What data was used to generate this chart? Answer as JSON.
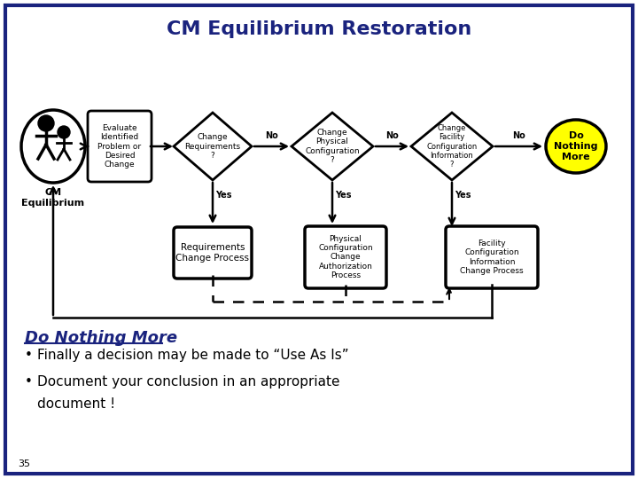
{
  "title": "CM Equilibrium Restoration",
  "title_color": "#1a237e",
  "title_fontsize": 16,
  "bg_color": "#ffffff",
  "border_color": "#1a237e",
  "slide_number": "35",
  "bottom_title": "Do Nothing More",
  "bullet1": "Finally a decision may be made to “Use As Is”",
  "bullet2": "Document your conclusion in an appropriate\n        document !",
  "shape_fill": "#ffffff",
  "shape_border": "#000000",
  "do_nothing_fill": "#ffff00",
  "do_nothing_border": "#000000",
  "text_color_dark": "#1a237e"
}
